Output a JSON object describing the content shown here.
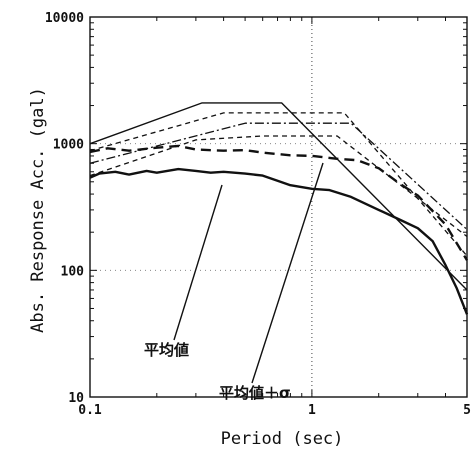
{
  "chart_data": {
    "type": "line",
    "xscale": "log",
    "yscale": "log",
    "xlim": [
      0.1,
      5
    ],
    "ylim": [
      10,
      10000
    ],
    "xlabel": "Period (sec)",
    "ylabel": "Abs. Response Acc.  (gal)",
    "xticks": [
      {
        "value": 0.1,
        "label": "0.1"
      },
      {
        "value": 1,
        "label": "1"
      },
      {
        "value": 5,
        "label": "5"
      }
    ],
    "yticks": [
      {
        "value": 10,
        "label": "10"
      },
      {
        "value": 100,
        "label": "100"
      },
      {
        "value": 1000,
        "label": "1000"
      },
      {
        "value": 10000,
        "label": "10000"
      }
    ],
    "grid": "dotted",
    "reference_line_x": 1,
    "annotations": [
      {
        "text": "平均値",
        "target": "mean"
      },
      {
        "text": "平均値＋σ",
        "target": "mean_plus_sigma"
      }
    ],
    "series": [
      {
        "key": "design_upper",
        "style": "solid-thin",
        "points": [
          [
            0.1,
            1000
          ],
          [
            0.32,
            2100
          ],
          [
            0.73,
            2100
          ],
          [
            5,
            70
          ]
        ]
      },
      {
        "key": "dash_upper",
        "style": "dash-fine",
        "points": [
          [
            0.1,
            880
          ],
          [
            0.4,
            1750
          ],
          [
            1.4,
            1750
          ],
          [
            5,
            130
          ]
        ]
      },
      {
        "key": "dashdot",
        "style": "dash-dot",
        "points": [
          [
            0.1,
            700
          ],
          [
            0.5,
            1450
          ],
          [
            1.5,
            1450
          ],
          [
            5,
            210
          ]
        ]
      },
      {
        "key": "dash_lower",
        "style": "dash-fine",
        "points": [
          [
            0.1,
            560
          ],
          [
            0.3,
            1070
          ],
          [
            0.6,
            1150
          ],
          [
            1.3,
            1150
          ],
          [
            5,
            185
          ]
        ]
      },
      {
        "key": "mean_plus_sigma",
        "style": "dash-bold",
        "points": [
          [
            0.1,
            860
          ],
          [
            0.12,
            920
          ],
          [
            0.15,
            880
          ],
          [
            0.2,
            930
          ],
          [
            0.25,
            960
          ],
          [
            0.3,
            900
          ],
          [
            0.4,
            880
          ],
          [
            0.5,
            890
          ],
          [
            0.6,
            850
          ],
          [
            0.8,
            810
          ],
          [
            1.0,
            800
          ],
          [
            1.3,
            760
          ],
          [
            1.6,
            740
          ],
          [
            2.0,
            640
          ],
          [
            2.5,
            480
          ],
          [
            3.0,
            390
          ],
          [
            4.0,
            230
          ],
          [
            5,
            120
          ]
        ]
      },
      {
        "key": "mean",
        "style": "solid-bold",
        "points": [
          [
            0.1,
            540
          ],
          [
            0.11,
            580
          ],
          [
            0.13,
            600
          ],
          [
            0.15,
            570
          ],
          [
            0.18,
            610
          ],
          [
            0.2,
            590
          ],
          [
            0.25,
            630
          ],
          [
            0.3,
            610
          ],
          [
            0.35,
            590
          ],
          [
            0.4,
            600
          ],
          [
            0.5,
            580
          ],
          [
            0.6,
            560
          ],
          [
            0.7,
            510
          ],
          [
            0.8,
            470
          ],
          [
            1.0,
            440
          ],
          [
            1.2,
            430
          ],
          [
            1.5,
            380
          ],
          [
            2.0,
            300
          ],
          [
            2.5,
            250
          ],
          [
            3.0,
            215
          ],
          [
            3.5,
            170
          ],
          [
            4.0,
            110
          ],
          [
            4.5,
            72
          ],
          [
            5,
            45
          ]
        ]
      }
    ]
  }
}
